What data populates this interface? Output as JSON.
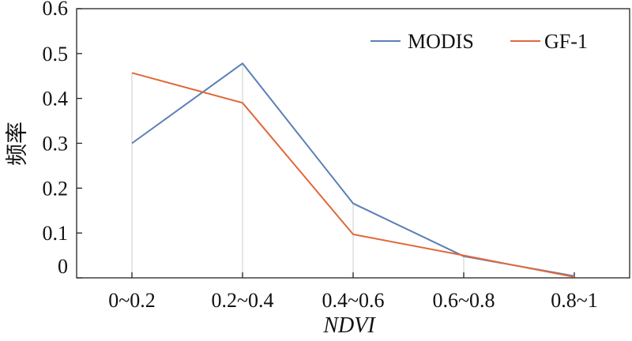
{
  "chart_data": {
    "type": "line",
    "categories": [
      "0~0.2",
      "0.2~0.4",
      "0.4~0.6",
      "0.6~0.8",
      "0.8~1"
    ],
    "series": [
      {
        "name": "MODIS",
        "values": [
          0.3,
          0.478,
          0.166,
          0.048,
          0.004
        ],
        "color": "#5b7fb5"
      },
      {
        "name": "GF-1",
        "values": [
          0.457,
          0.39,
          0.097,
          0.05,
          0.002
        ],
        "color": "#e0683a"
      }
    ],
    "xlabel": "NDVI",
    "ylabel": "频率",
    "ylim": [
      0,
      0.6
    ],
    "yticks": [
      "0",
      "0.1",
      "0.2",
      "0.3",
      "0.4",
      "0.5",
      "0.6"
    ],
    "legend_position": "top-right",
    "grid": "vertical drop lines at categories"
  }
}
